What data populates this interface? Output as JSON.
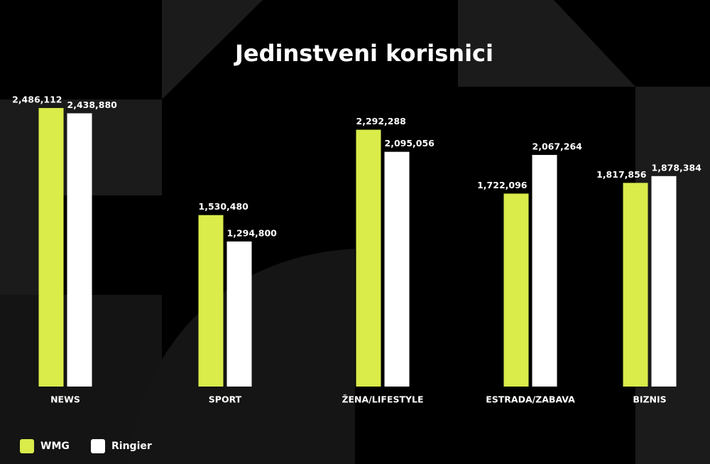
{
  "chart_data": {
    "type": "bar",
    "title": "Jedinstveni korisnici",
    "categories": [
      "NEWS",
      "SPORT",
      "ŽENA/LIFESTYLE",
      "ESTRADA/ZABAVA",
      "BIZNIS"
    ],
    "series": [
      {
        "name": "WMG",
        "color": "#d9ec4a",
        "values": [
          2486112,
          1530480,
          2292288,
          1722096,
          1817856
        ],
        "value_labels": [
          "2,486,112",
          "1,530,480",
          "2,292,288",
          "1,722,096",
          "1,817,856"
        ]
      },
      {
        "name": "Ringier",
        "color": "#ffffff",
        "values": [
          2438880,
          1294800,
          2095056,
          2067264,
          1878384
        ],
        "value_labels": [
          "2,438,880",
          "1,294,800",
          "2,095,056",
          "2,067,264",
          "1,878,384"
        ]
      }
    ],
    "legend": "bottom-left"
  }
}
